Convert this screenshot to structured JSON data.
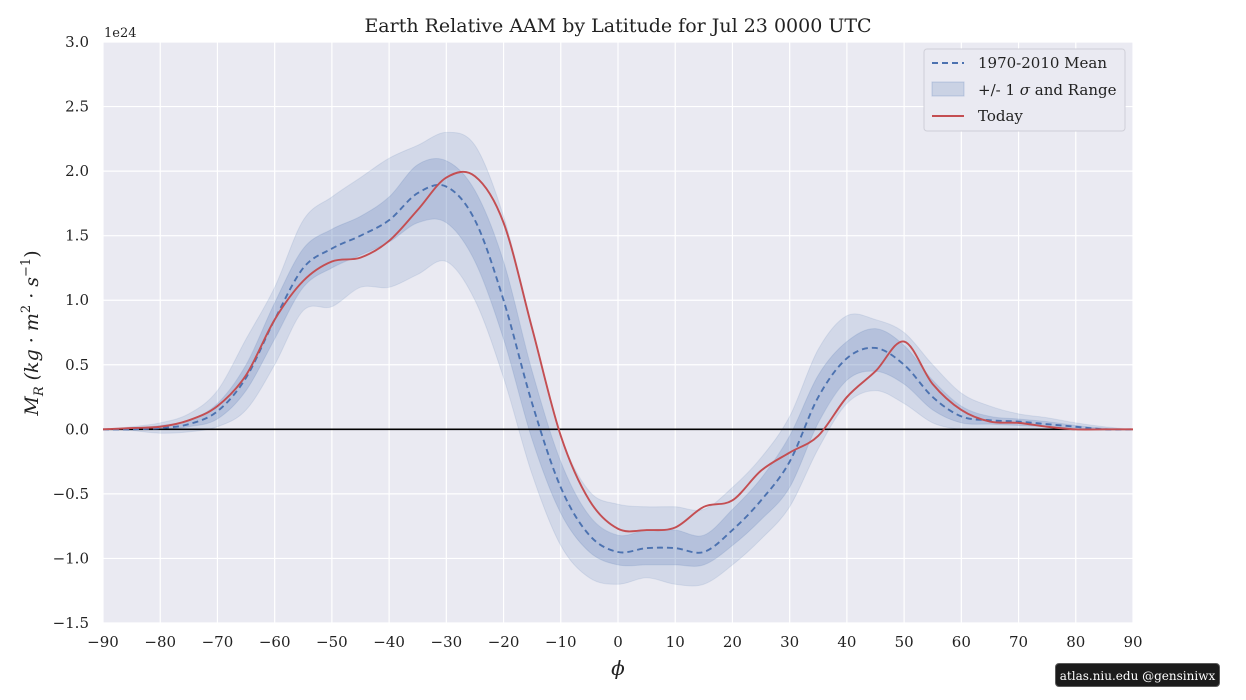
{
  "chart_data": {
    "type": "line",
    "title": "Earth Relative AAM by Latitude for Jul 23 0000 UTC",
    "xlabel": "ϕ",
    "ylabel": "M_R (kg·m²·s⁻¹)",
    "ylabel_parts": {
      "sym": "M",
      "sub": "R",
      "lpar": "(kg · m",
      "sup1": "2",
      "mid": " · s",
      "sup2": "−1",
      "rpar": ")"
    },
    "y_scale_label": "1e24",
    "xlim": [
      -90,
      90
    ],
    "ylim": [
      -1.5,
      3.0
    ],
    "x_ticks": [
      -90,
      -80,
      -70,
      -60,
      -50,
      -40,
      -30,
      -20,
      -10,
      0,
      10,
      20,
      30,
      40,
      50,
      60,
      70,
      80,
      90
    ],
    "x_tick_labels": [
      "−90",
      "−80",
      "−70",
      "−60",
      "−50",
      "−40",
      "−30",
      "−20",
      "−10",
      "0",
      "10",
      "20",
      "30",
      "40",
      "50",
      "60",
      "70",
      "80",
      "90"
    ],
    "y_ticks": [
      -1.5,
      -1.0,
      -0.5,
      0.0,
      0.5,
      1.0,
      1.5,
      2.0,
      2.5,
      3.0
    ],
    "y_tick_labels": [
      "−1.5",
      "−1.0",
      "−0.5",
      "0.0",
      "0.5",
      "1.0",
      "1.5",
      "2.0",
      "2.5",
      "3.0"
    ],
    "grid": true,
    "legend_position": "top-right",
    "legend": {
      "mean": "1970-2010 Mean",
      "band_prefix": "+/- 1 ",
      "band_sigma": "σ",
      "band_suffix": " and Range",
      "today": "Today"
    },
    "colors": {
      "mean": "#4c72b0",
      "today": "#c44e52",
      "band": "#4c72b0",
      "plot_bg": "#eaeaf2",
      "zero_line": "#000000"
    },
    "x": [
      -90,
      -85,
      -80,
      -75,
      -70,
      -65,
      -60,
      -55,
      -50,
      -45,
      -40,
      -35,
      -30,
      -25,
      -20,
      -15,
      -10,
      -5,
      0,
      5,
      10,
      15,
      20,
      25,
      30,
      35,
      40,
      45,
      50,
      55,
      60,
      65,
      70,
      75,
      80,
      85,
      90
    ],
    "series": [
      {
        "name": "1970-2010 Mean",
        "style": "dashed",
        "values": [
          0.0,
          0.0,
          0.01,
          0.04,
          0.14,
          0.4,
          0.85,
          1.25,
          1.4,
          1.5,
          1.62,
          1.83,
          1.88,
          1.62,
          1.0,
          0.2,
          -0.45,
          -0.82,
          -0.95,
          -0.92,
          -0.92,
          -0.95,
          -0.78,
          -0.55,
          -0.25,
          0.25,
          0.55,
          0.63,
          0.5,
          0.25,
          0.1,
          0.07,
          0.06,
          0.04,
          0.02,
          0.0,
          0.0
        ]
      },
      {
        "name": "Today",
        "style": "solid",
        "values": [
          0.0,
          0.01,
          0.02,
          0.07,
          0.18,
          0.42,
          0.85,
          1.15,
          1.3,
          1.33,
          1.46,
          1.7,
          1.95,
          1.96,
          1.6,
          0.78,
          -0.05,
          -0.55,
          -0.77,
          -0.78,
          -0.76,
          -0.6,
          -0.55,
          -0.32,
          -0.18,
          -0.05,
          0.25,
          0.45,
          0.68,
          0.35,
          0.15,
          0.06,
          0.05,
          0.02,
          0.0,
          0.0,
          0.0
        ]
      }
    ],
    "bands": [
      {
        "name": "+/- 1 σ",
        "lower": [
          0.0,
          0.0,
          0.0,
          0.02,
          0.08,
          0.3,
          0.7,
          1.1,
          1.25,
          1.35,
          1.45,
          1.6,
          1.6,
          1.3,
          0.7,
          -0.08,
          -0.65,
          -0.95,
          -1.05,
          -1.05,
          -1.05,
          -1.05,
          -0.9,
          -0.7,
          -0.45,
          0.05,
          0.38,
          0.45,
          0.35,
          0.15,
          0.05,
          0.04,
          0.03,
          0.02,
          0.01,
          0.0,
          0.0
        ],
        "upper": [
          0.0,
          0.01,
          0.03,
          0.07,
          0.2,
          0.5,
          0.98,
          1.4,
          1.55,
          1.65,
          1.8,
          2.05,
          2.08,
          1.85,
          1.3,
          0.45,
          -0.25,
          -0.67,
          -0.82,
          -0.78,
          -0.78,
          -0.82,
          -0.62,
          -0.38,
          -0.05,
          0.42,
          0.68,
          0.78,
          0.65,
          0.38,
          0.18,
          0.1,
          0.08,
          0.06,
          0.03,
          0.01,
          0.0
        ]
      },
      {
        "name": "Range",
        "lower": [
          0.0,
          -0.01,
          -0.03,
          -0.02,
          0.02,
          0.15,
          0.5,
          0.92,
          0.95,
          1.1,
          1.1,
          1.2,
          1.3,
          1.0,
          0.4,
          -0.35,
          -0.9,
          -1.15,
          -1.2,
          -1.15,
          -1.2,
          -1.2,
          -1.05,
          -0.85,
          -0.6,
          -0.15,
          0.2,
          0.3,
          0.2,
          0.05,
          0.0,
          0.0,
          0.0,
          0.0,
          0.0,
          0.0,
          0.0
        ]
      },
      {
        "name": "Range-upper",
        "upper": [
          0.0,
          0.02,
          0.05,
          0.12,
          0.3,
          0.7,
          1.1,
          1.62,
          1.8,
          1.95,
          2.1,
          2.2,
          2.3,
          2.2,
          1.65,
          0.8,
          -0.05,
          -0.48,
          -0.58,
          -0.6,
          -0.6,
          -0.62,
          -0.45,
          -0.22,
          0.1,
          0.62,
          0.88,
          0.85,
          0.75,
          0.5,
          0.28,
          0.18,
          0.12,
          0.09,
          0.05,
          0.02,
          0.0
        ]
      }
    ]
  },
  "credit": "atlas.niu.edu  @gensiniwx"
}
